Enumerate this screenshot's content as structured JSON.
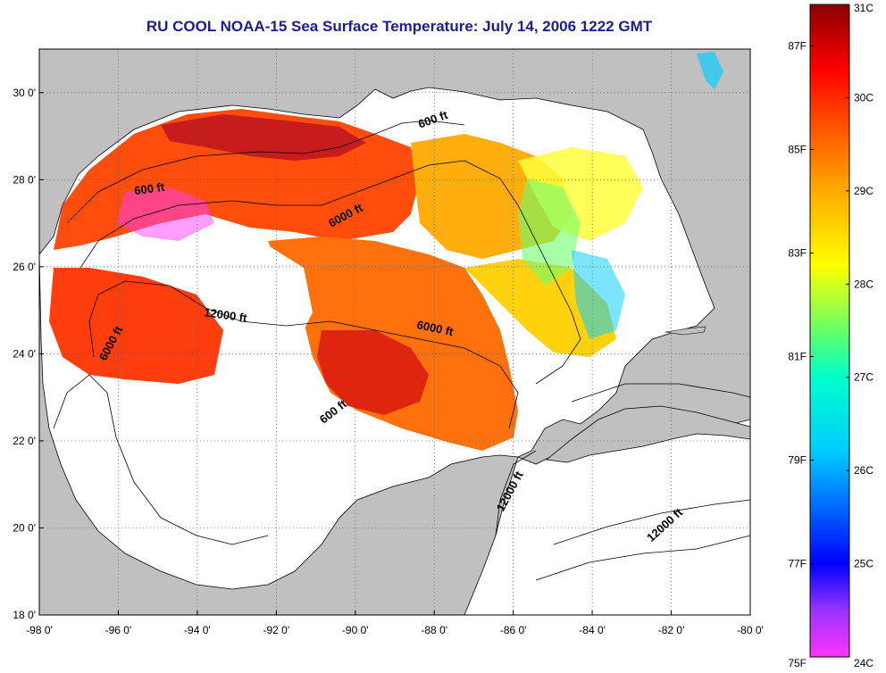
{
  "title": "RU COOL  NOAA-15  Sea Surface Temperature:  July 14, 2006 1222 GMT",
  "map": {
    "lon_range": [
      -98,
      -80
    ],
    "lat_range": [
      18,
      31
    ],
    "y_ticks": [
      {
        "value": 18,
        "label": "18 0'"
      },
      {
        "value": 20,
        "label": "20 0'"
      },
      {
        "value": 22,
        "label": "22 0'"
      },
      {
        "value": 24,
        "label": "24 0'"
      },
      {
        "value": 26,
        "label": "26 0'"
      },
      {
        "value": 28,
        "label": "28 0'"
      },
      {
        "value": 30,
        "label": "30 0'"
      }
    ],
    "x_ticks": [
      {
        "value": -98,
        "label": "-98 0'"
      },
      {
        "value": -96,
        "label": "-96 0'"
      },
      {
        "value": -94,
        "label": "-94 0'"
      },
      {
        "value": -92,
        "label": "-92 0'"
      },
      {
        "value": -90,
        "label": "-90 0'"
      },
      {
        "value": -88,
        "label": "-88 0'"
      },
      {
        "value": -86,
        "label": "-86 0'"
      },
      {
        "value": -84,
        "label": "-84 0'"
      },
      {
        "value": -82,
        "label": "-82 0'"
      },
      {
        "value": -80,
        "label": "-80 0'"
      }
    ],
    "contour_labels": [
      {
        "text": "600 ft",
        "lon": -88.0,
        "lat": 29.3,
        "angle": -20
      },
      {
        "text": "600 ft",
        "lon": -95.2,
        "lat": 27.7,
        "angle": -8
      },
      {
        "text": "6000 ft",
        "lon": -90.2,
        "lat": 27.1,
        "angle": -28
      },
      {
        "text": "12000 ft",
        "lon": -93.3,
        "lat": 24.8,
        "angle": 8
      },
      {
        "text": "6000 ft",
        "lon": -96.1,
        "lat": 24.2,
        "angle": -62
      },
      {
        "text": "6000 ft",
        "lon": -88.0,
        "lat": 24.5,
        "angle": 12
      },
      {
        "text": "600 ft",
        "lon": -90.5,
        "lat": 22.6,
        "angle": -38
      },
      {
        "text": "12000 ft",
        "lon": -86.0,
        "lat": 20.8,
        "angle": -62
      },
      {
        "text": "12000 ft",
        "lon": -82.1,
        "lat": 20.0,
        "angle": -42
      }
    ],
    "colors": {
      "land": "#c0c0c0",
      "ocean": "#ffffff",
      "grid": "#555555"
    }
  },
  "colorbar": {
    "celsius_range": [
      24,
      31
    ],
    "celsius_labels": [
      "31C",
      "30C",
      "29C",
      "28C",
      "27C",
      "26C",
      "25C",
      "24C"
    ],
    "fahrenheit_labels": [
      {
        "value": 87,
        "label": "87F"
      },
      {
        "value": 85,
        "label": "85F"
      },
      {
        "value": 83,
        "label": "83F"
      },
      {
        "value": 81,
        "label": "81F"
      },
      {
        "value": 79,
        "label": "79F"
      },
      {
        "value": 77,
        "label": "77F"
      },
      {
        "value": 75,
        "label": "75F"
      }
    ],
    "stops": [
      {
        "celsius": 24.0,
        "color": "#ff33ff"
      },
      {
        "celsius": 24.5,
        "color": "#9933ff"
      },
      {
        "celsius": 25.0,
        "color": "#0000ff"
      },
      {
        "celsius": 25.6,
        "color": "#0066ff"
      },
      {
        "celsius": 26.2,
        "color": "#00ccff"
      },
      {
        "celsius": 27.0,
        "color": "#00ffcc"
      },
      {
        "celsius": 27.5,
        "color": "#66ff66"
      },
      {
        "celsius": 28.2,
        "color": "#ffff00"
      },
      {
        "celsius": 29.0,
        "color": "#ffaa00"
      },
      {
        "celsius": 29.8,
        "color": "#ff4400"
      },
      {
        "celsius": 30.3,
        "color": "#ff0000"
      },
      {
        "celsius": 31.0,
        "color": "#8b0000"
      }
    ]
  }
}
